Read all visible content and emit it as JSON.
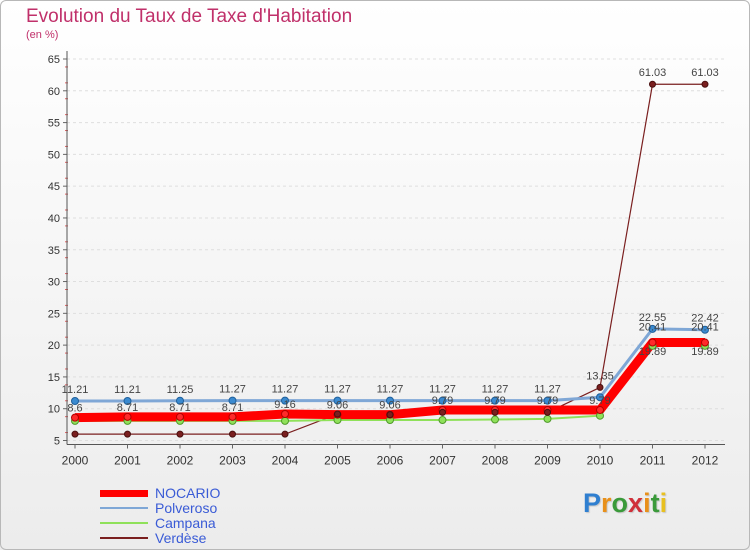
{
  "title": "Evolution du Taux de Taxe d'Habitation",
  "subtitle": "(en %)",
  "logo": {
    "letters": [
      "P",
      "r",
      "o",
      "x",
      "i",
      "t",
      "i"
    ],
    "colors": [
      "#2f7fd0",
      "#e8901a",
      "#3a9a3a",
      "#d0303a",
      "#e8901a",
      "#3a9a3a",
      "#e8c020"
    ]
  },
  "chart_data": {
    "type": "line",
    "title": "Evolution du Taux de Taxe d'Habitation",
    "ylabel": "(en %)",
    "xlabel": "",
    "ylim": [
      5,
      65
    ],
    "yticks": [
      5,
      10,
      15,
      20,
      25,
      30,
      35,
      40,
      45,
      50,
      55,
      60,
      65
    ],
    "categories": [
      "2000",
      "2001",
      "2002",
      "2003",
      "2004",
      "2005",
      "2006",
      "2007",
      "2008",
      "2009",
      "2010",
      "2011",
      "2012"
    ],
    "series": [
      {
        "name": "NOCARIO",
        "color": "#ff0000",
        "values": [
          8.6,
          8.71,
          8.71,
          8.71,
          9.16,
          9.06,
          9.06,
          9.79,
          9.79,
          9.79,
          9.79,
          20.41,
          20.41
        ]
      },
      {
        "name": "Polveroso",
        "color": "#7fa7d6",
        "values": [
          11.21,
          11.21,
          11.25,
          11.27,
          11.27,
          11.27,
          11.27,
          11.27,
          11.27,
          11.27,
          11.8,
          22.55,
          22.42
        ]
      },
      {
        "name": "Campana",
        "color": "#8fe15a",
        "values": [
          8.08,
          8.08,
          8.08,
          8.08,
          8.08,
          8.22,
          8.22,
          8.22,
          8.3,
          8.4,
          8.9,
          19.89,
          19.89
        ]
      },
      {
        "name": "Verdèse",
        "color": "#7a1f1f",
        "values": [
          6.0,
          6.0,
          6.0,
          6.0,
          6.0,
          9.16,
          9.06,
          9.42,
          9.42,
          9.42,
          13.35,
          61.03,
          61.03
        ]
      }
    ],
    "point_labels": [
      {
        "series": "Polveroso",
        "index": 0,
        "text": "11.21"
      },
      {
        "series": "Polveroso",
        "index": 1,
        "text": "11.21"
      },
      {
        "series": "Polveroso",
        "index": 2,
        "text": "11.25"
      },
      {
        "series": "Polveroso",
        "index": 3,
        "text": "11.27"
      },
      {
        "series": "Polveroso",
        "index": 4,
        "text": "11.27"
      },
      {
        "series": "Polveroso",
        "index": 5,
        "text": "11.27"
      },
      {
        "series": "Polveroso",
        "index": 6,
        "text": "11.27"
      },
      {
        "series": "Polveroso",
        "index": 7,
        "text": "11.27"
      },
      {
        "series": "Polveroso",
        "index": 8,
        "text": "11.27"
      },
      {
        "series": "Polveroso",
        "index": 9,
        "text": "11.27"
      },
      {
        "series": "Verdèse",
        "index": 10,
        "text": "13.35"
      },
      {
        "series": "Polveroso",
        "index": 11,
        "text": "22.55"
      },
      {
        "series": "Polveroso",
        "index": 12,
        "text": "22.42"
      },
      {
        "series": "NOCARIO",
        "index": 11,
        "text": "20.41"
      },
      {
        "series": "NOCARIO",
        "index": 12,
        "text": "20.41"
      },
      {
        "series": "Campana",
        "index": 11,
        "text": "19.89"
      },
      {
        "series": "Campana",
        "index": 12,
        "text": "19.89"
      },
      {
        "series": "Verdèse",
        "index": 11,
        "text": "61.03"
      },
      {
        "series": "Verdèse",
        "index": 12,
        "text": "61.03"
      },
      {
        "series": "NOCARIO",
        "index": 0,
        "text": "8.6"
      },
      {
        "series": "NOCARIO",
        "index": 1,
        "text": "8.71"
      },
      {
        "series": "NOCARIO",
        "index": 2,
        "text": "8.71"
      },
      {
        "series": "NOCARIO",
        "index": 3,
        "text": "8.71"
      },
      {
        "series": "NOCARIO",
        "index": 4,
        "text": "9.16"
      },
      {
        "series": "NOCARIO",
        "index": 5,
        "text": "9.06"
      },
      {
        "series": "NOCARIO",
        "index": 6,
        "text": "9.06"
      },
      {
        "series": "NOCARIO",
        "index": 7,
        "text": "9.79"
      },
      {
        "series": "NOCARIO",
        "index": 8,
        "text": "9.79"
      },
      {
        "series": "NOCARIO",
        "index": 9,
        "text": "9.79"
      },
      {
        "series": "NOCARIO",
        "index": 10,
        "text": "9.79"
      }
    ]
  }
}
